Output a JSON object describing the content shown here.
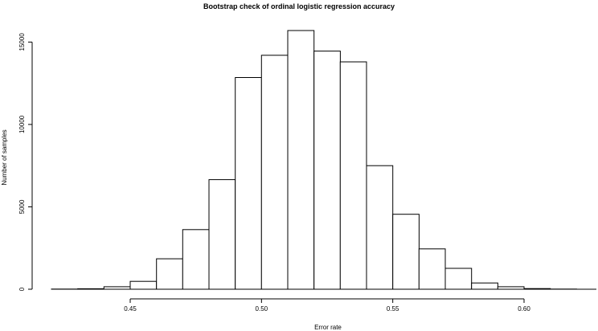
{
  "chart_data": {
    "type": "bar",
    "title": "Bootstrap check of ordinal logistic regression accuracy",
    "xlabel": "Error rate",
    "ylabel": "Number of samples",
    "bin_width": 0.01,
    "bin_starts": [
      0.42,
      0.43,
      0.44,
      0.45,
      0.46,
      0.47,
      0.48,
      0.49,
      0.5,
      0.51,
      0.52,
      0.53,
      0.54,
      0.55,
      0.56,
      0.57,
      0.58,
      0.59,
      0.6,
      0.61
    ],
    "values": [
      10,
      30,
      150,
      480,
      1850,
      3620,
      6650,
      12850,
      14200,
      15700,
      14450,
      13800,
      7500,
      4550,
      2450,
      1270,
      380,
      150,
      40,
      10
    ],
    "xlim": [
      0.42,
      0.62
    ],
    "ylim": [
      0,
      15700
    ],
    "x_ticks": [
      0.45,
      0.5,
      0.55,
      0.6
    ],
    "x_tick_labels": [
      "0.45",
      "0.50",
      "0.55",
      "0.60"
    ],
    "y_ticks": [
      0,
      5000,
      10000,
      15000
    ],
    "y_tick_labels": [
      "0",
      "5000",
      "10000",
      "15000"
    ],
    "grid": false
  }
}
